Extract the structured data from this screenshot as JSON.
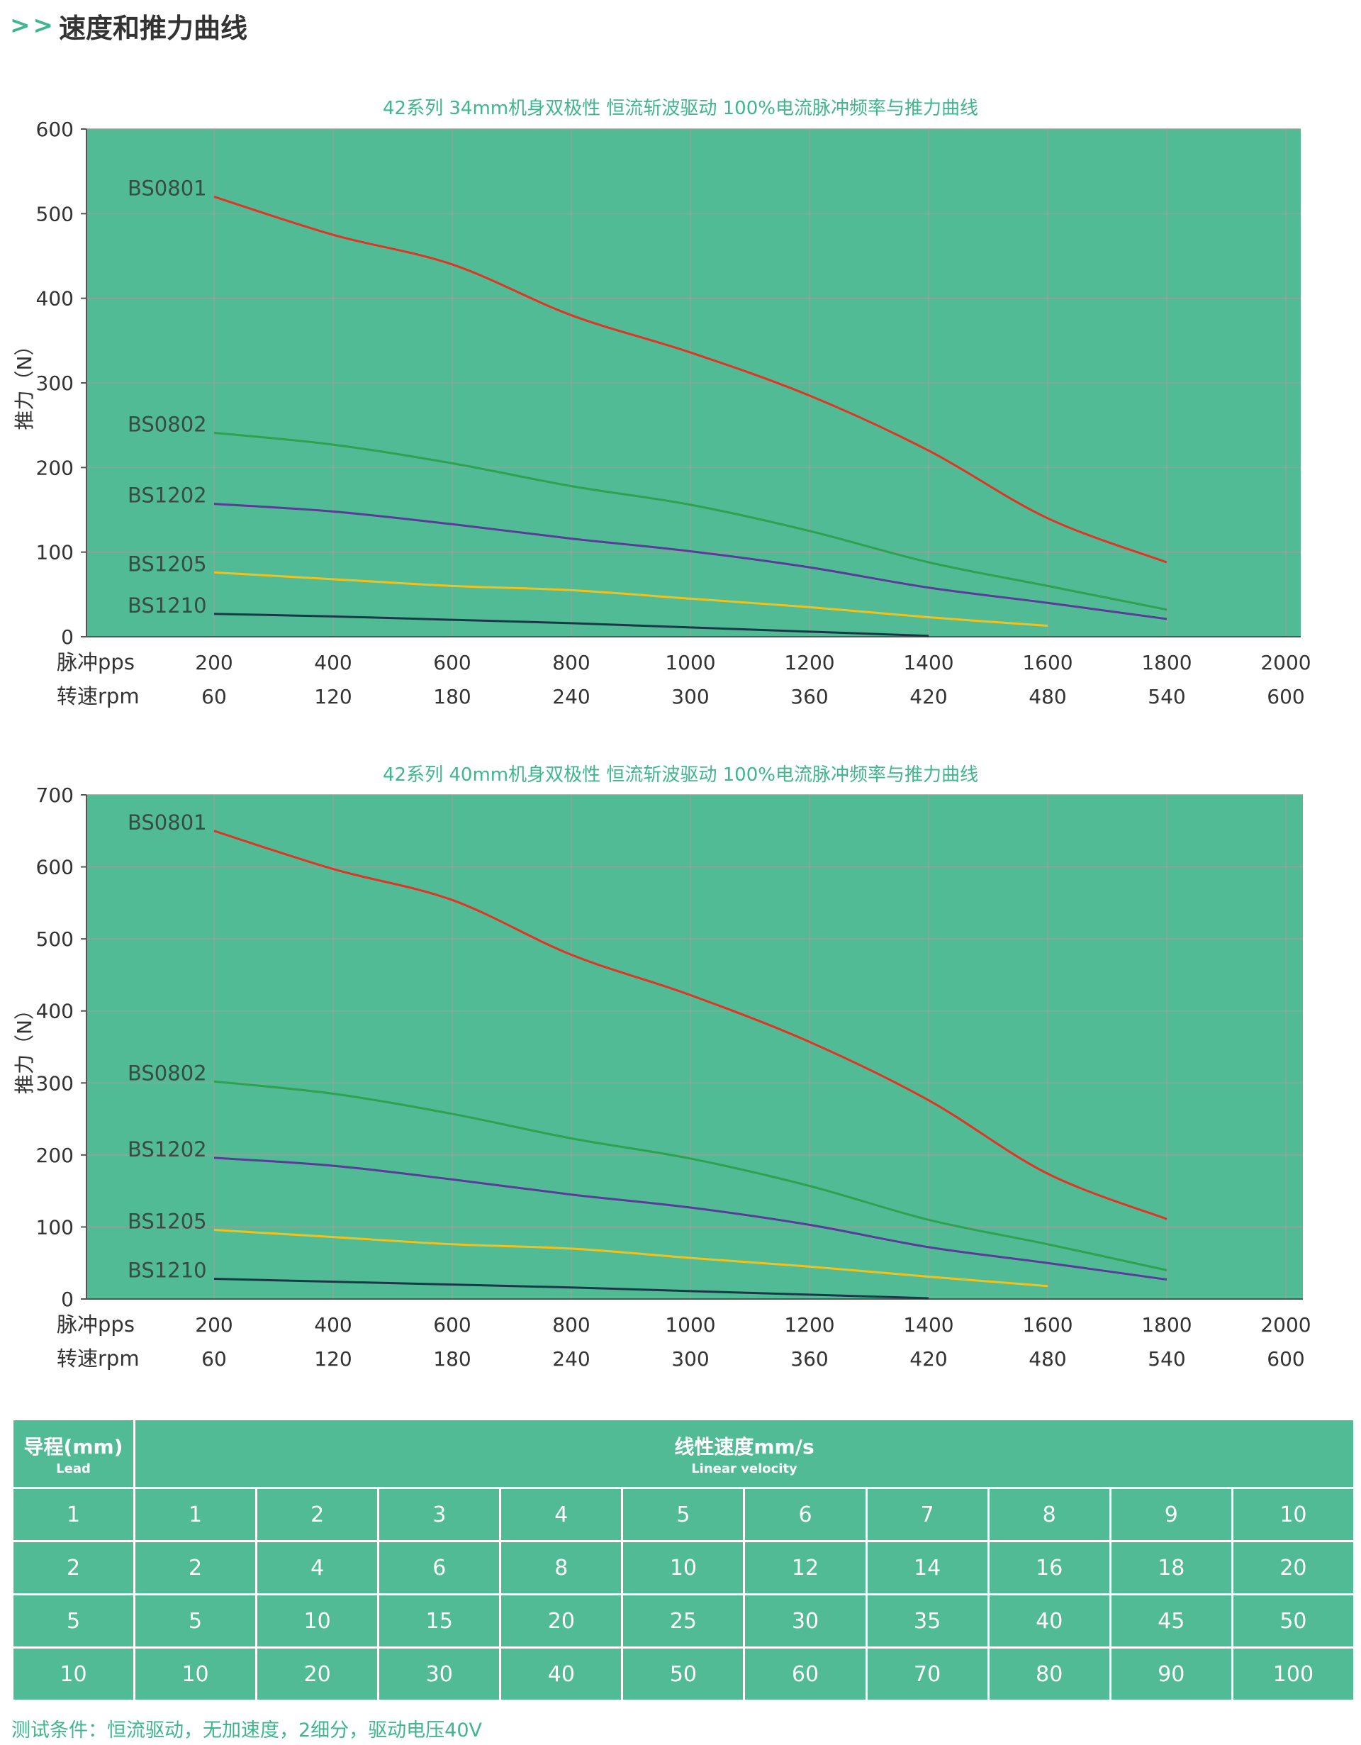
{
  "header": {
    "arrows": ">>",
    "title": "速度和推力曲线"
  },
  "chart_data": [
    {
      "type": "line",
      "title": "42系列 34mm机身双极性 恒流斩波驱动 100%电流脉冲频率与推力曲线",
      "ylabel": "推力（N）",
      "ylim": [
        0,
        600
      ],
      "yticks": [
        0,
        100,
        200,
        300,
        400,
        500,
        600
      ],
      "xlim": [
        0,
        2000
      ],
      "xaxis_label": "脉冲pps",
      "x2axis_label": "转速rpm",
      "xticks": [
        200,
        400,
        600,
        800,
        1000,
        1200,
        1400,
        1600,
        1800,
        2000
      ],
      "x2ticks": [
        60,
        120,
        180,
        240,
        300,
        360,
        420,
        480,
        540,
        600
      ],
      "grid": true,
      "background_color": "#50bb94",
      "series": [
        {
          "name": "BS0801",
          "color": "#e03424",
          "x": [
            200,
            400,
            600,
            800,
            1000,
            1200,
            1400,
            1600,
            1800
          ],
          "y": [
            520,
            475,
            440,
            380,
            336,
            285,
            220,
            140,
            88
          ]
        },
        {
          "name": "BS0802",
          "color": "#2ea24e",
          "x": [
            200,
            400,
            600,
            800,
            1000,
            1200,
            1400,
            1600,
            1800
          ],
          "y": [
            241,
            227,
            205,
            178,
            156,
            125,
            88,
            60,
            32
          ]
        },
        {
          "name": "BS1202",
          "color": "#5a3b9a",
          "x": [
            200,
            400,
            600,
            800,
            1000,
            1200,
            1400,
            1600,
            1800
          ],
          "y": [
            157,
            148,
            133,
            116,
            101,
            82,
            58,
            40,
            21
          ]
        },
        {
          "name": "BS1205",
          "color": "#f1c21c",
          "x": [
            200,
            400,
            600,
            800,
            1000,
            1200,
            1400,
            1600
          ],
          "y": [
            76,
            68,
            60,
            55,
            45,
            35,
            23,
            13
          ]
        },
        {
          "name": "BS1210",
          "color": "#1b3848",
          "x": [
            200,
            400,
            600,
            800,
            1000,
            1200,
            1400
          ],
          "y": [
            27,
            24,
            20,
            16,
            11,
            6,
            1
          ]
        }
      ]
    },
    {
      "type": "line",
      "title": "42系列 40mm机身双极性 恒流斩波驱动 100%电流脉冲频率与推力曲线",
      "ylabel": "推力（N）",
      "ylim": [
        0,
        700
      ],
      "yticks": [
        0,
        100,
        200,
        300,
        400,
        500,
        600,
        700
      ],
      "xlim": [
        0,
        2000
      ],
      "xaxis_label": "脉冲pps",
      "x2axis_label": "转速rpm",
      "xticks": [
        200,
        400,
        600,
        800,
        1000,
        1200,
        1400,
        1600,
        1800,
        2000
      ],
      "x2ticks": [
        60,
        120,
        180,
        240,
        300,
        360,
        420,
        480,
        540,
        600
      ],
      "grid": true,
      "background_color": "#50bb94",
      "series": [
        {
          "name": "BS0801",
          "color": "#e03424",
          "x": [
            200,
            400,
            600,
            800,
            1000,
            1200,
            1400,
            1600,
            1800
          ],
          "y": [
            650,
            597,
            554,
            478,
            422,
            357,
            276,
            174,
            111
          ]
        },
        {
          "name": "BS0802",
          "color": "#2ea24e",
          "x": [
            200,
            400,
            600,
            800,
            1000,
            1200,
            1400,
            1600,
            1800
          ],
          "y": [
            302,
            285,
            257,
            223,
            195,
            157,
            110,
            76,
            40
          ]
        },
        {
          "name": "BS1202",
          "color": "#5a3b9a",
          "x": [
            200,
            400,
            600,
            800,
            1000,
            1200,
            1400,
            1600,
            1800
          ],
          "y": [
            196,
            185,
            166,
            145,
            127,
            103,
            72,
            50,
            27
          ]
        },
        {
          "name": "BS1205",
          "color": "#f1c21c",
          "x": [
            200,
            400,
            600,
            800,
            1000,
            1200,
            1400,
            1600
          ],
          "y": [
            96,
            86,
            76,
            70,
            57,
            45,
            31,
            18
          ]
        },
        {
          "name": "BS1210",
          "color": "#1b3848",
          "x": [
            200,
            400,
            600,
            800,
            1000,
            1200,
            1400
          ],
          "y": [
            28,
            24,
            20,
            16,
            11,
            6,
            1
          ]
        }
      ]
    }
  ],
  "table": {
    "lead_header": "导程(mm)",
    "lead_header_sub": "Lead",
    "speed_header": "线性速度mm/s",
    "speed_header_sub": "Linear velocity",
    "rows": [
      {
        "lead": "1",
        "values": [
          "1",
          "2",
          "3",
          "4",
          "5",
          "6",
          "7",
          "8",
          "9",
          "10"
        ]
      },
      {
        "lead": "2",
        "values": [
          "2",
          "4",
          "6",
          "8",
          "10",
          "12",
          "14",
          "16",
          "18",
          "20"
        ]
      },
      {
        "lead": "5",
        "values": [
          "5",
          "10",
          "15",
          "20",
          "25",
          "30",
          "35",
          "40",
          "45",
          "50"
        ]
      },
      {
        "lead": "10",
        "values": [
          "10",
          "20",
          "30",
          "40",
          "50",
          "60",
          "70",
          "80",
          "90",
          "100"
        ]
      }
    ]
  },
  "test_conditions": "测试条件：恒流驱动，无加速度，2细分，驱动电压40V"
}
